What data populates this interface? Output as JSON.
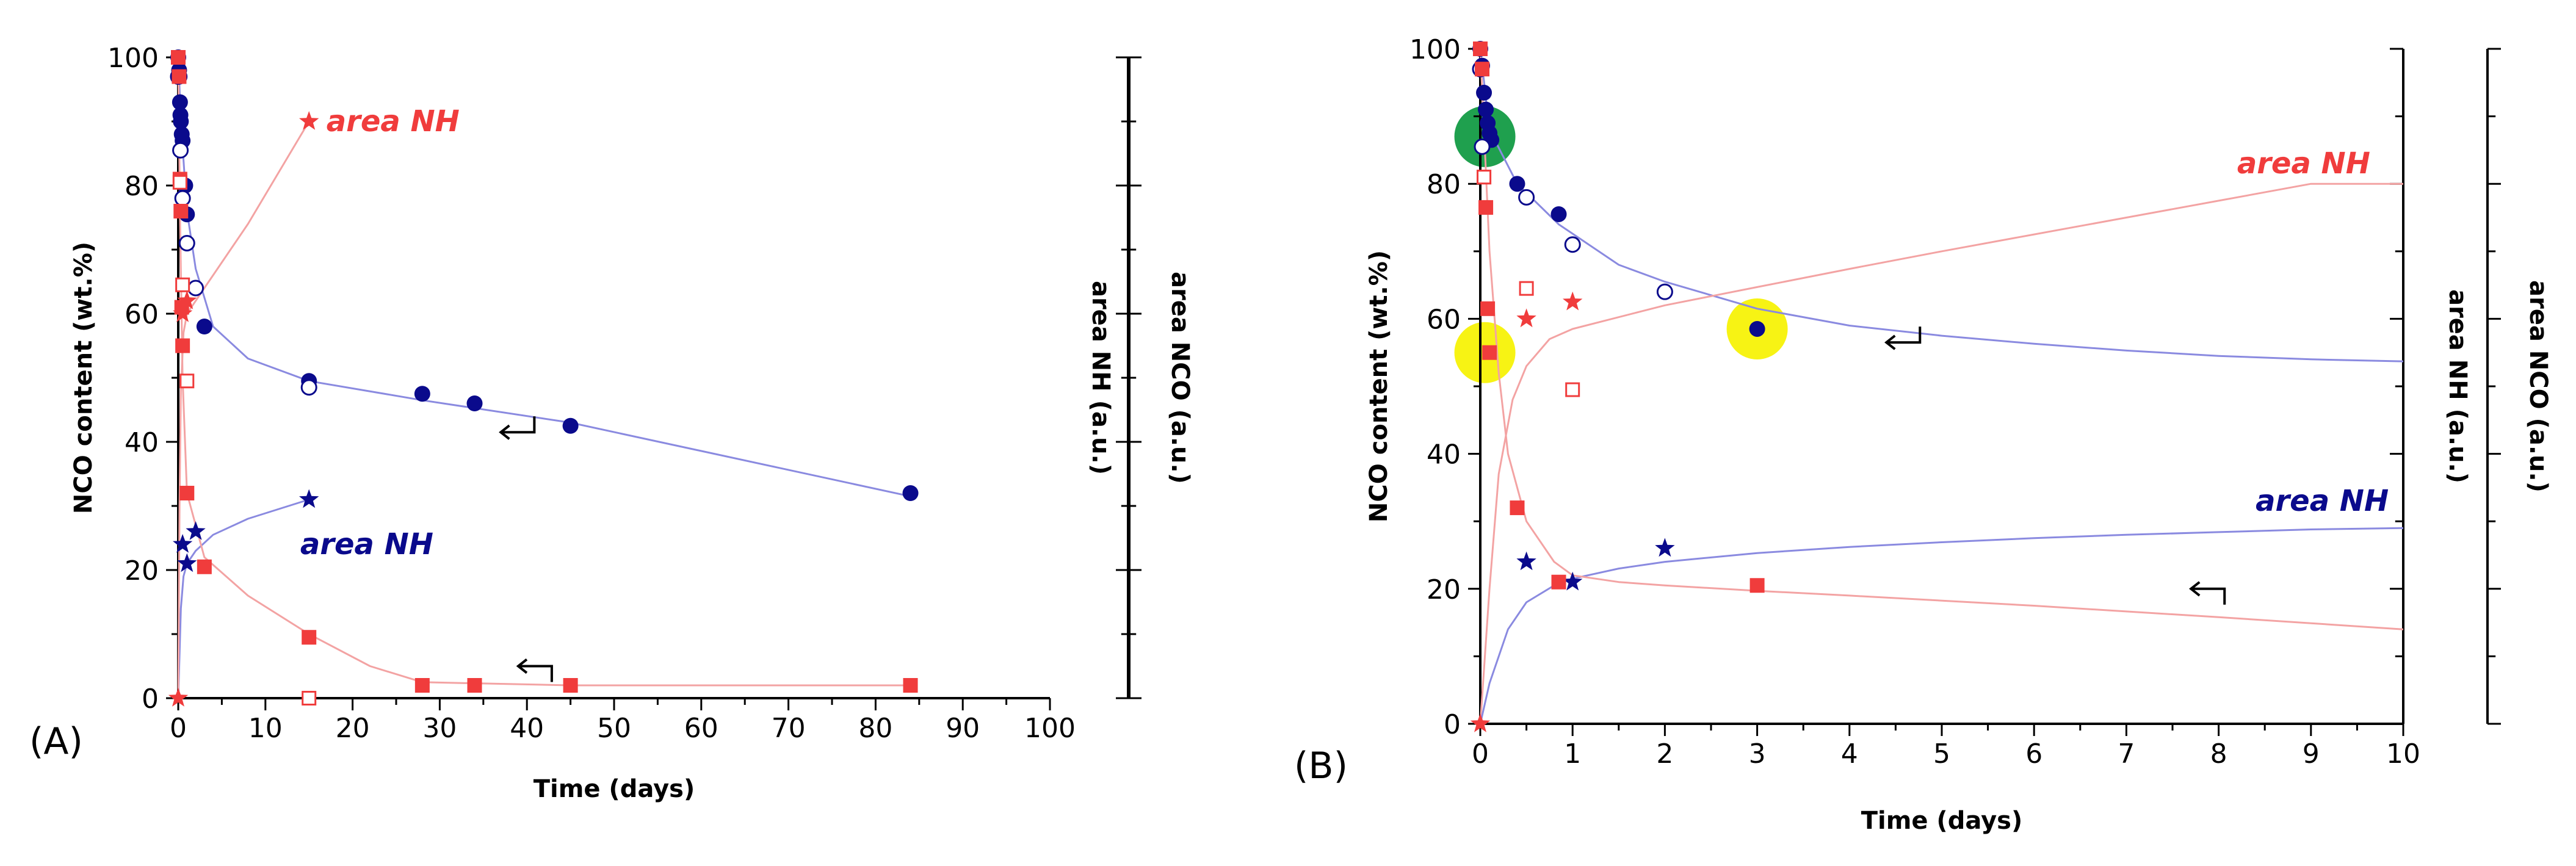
{
  "colors": {
    "blue": "#0a0a8c",
    "blue_fit": "#8a8ae0",
    "red": "#f03c3c",
    "red_fit": "#f3a3a3",
    "green_marker": "#1fa04e",
    "yellow_marker": "#f7f314"
  },
  "chart_data": [
    {
      "type": "scatter",
      "panel_label": "(A)",
      "xlabel": "Time (days)",
      "ylabel_left": "NCO content (wt.%)",
      "ylabel_right1": "area NH (a.u.)",
      "ylabel_right2": "area NCO (a.u.)",
      "xlim": [
        0,
        100
      ],
      "ylim": [
        0,
        100
      ],
      "xticks": [
        "0",
        "10",
        "20",
        "30",
        "40",
        "50",
        "60",
        "70",
        "80",
        "90",
        "100"
      ],
      "yticks": [
        "0",
        "20",
        "40",
        "60",
        "80",
        "100"
      ],
      "grid": false,
      "annotations": [
        {
          "text": "area NH",
          "color": "red",
          "x": 17,
          "y": 90
        },
        {
          "text": "area NH",
          "color": "blue",
          "x": 14,
          "y": 24
        }
      ],
      "series": [
        {
          "name": "NCO content (filled circles)",
          "marker": "circle-filled",
          "color": "blue",
          "x": [
            0,
            0.1,
            0.15,
            0.2,
            0.25,
            0.3,
            0.4,
            0.5,
            0.8,
            1,
            3,
            15,
            28,
            34,
            45,
            84
          ],
          "y": [
            100,
            98,
            97,
            93,
            91,
            90,
            88,
            87,
            80,
            75.5,
            58,
            49.5,
            47.5,
            46,
            42.5,
            32
          ]
        },
        {
          "name": "NCO content (open circles)",
          "marker": "circle-open",
          "color": "blue",
          "x": [
            0,
            0.25,
            0.5,
            1,
            2,
            15
          ],
          "y": [
            97,
            85.5,
            78,
            71,
            64,
            48.5
          ]
        },
        {
          "name": "NCO content fit",
          "marker": "line",
          "color": "blue_fit",
          "x": [
            0,
            0.3,
            1,
            2,
            4,
            8,
            15,
            28,
            45,
            84
          ],
          "y": [
            100,
            90,
            76,
            67,
            58,
            53,
            49.5,
            46.5,
            43,
            31.5
          ]
        },
        {
          "name": "area NH (red stars)",
          "marker": "star",
          "color": "red",
          "x": [
            0,
            0.5,
            1,
            15
          ],
          "y": [
            0,
            60,
            62,
            90
          ]
        },
        {
          "name": "area NH (blue stars)",
          "marker": "star",
          "color": "blue",
          "x": [
            0.5,
            1,
            2,
            15
          ],
          "y": [
            24,
            21,
            26,
            31
          ]
        },
        {
          "name": "area NH fit (blue)",
          "marker": "line",
          "color": "blue_fit",
          "x": [
            0,
            0.3,
            0.6,
            1,
            2,
            4,
            8,
            15
          ],
          "y": [
            0,
            14,
            19,
            21,
            23,
            25.5,
            28,
            31
          ]
        },
        {
          "name": "area NH fit (red)",
          "marker": "line",
          "color": "red_fit",
          "x": [
            0,
            0.15,
            0.3,
            0.6,
            1,
            3,
            8,
            15
          ],
          "y": [
            0,
            30,
            48,
            57,
            60,
            64,
            74,
            90
          ]
        },
        {
          "name": "area NCO (filled squares)",
          "marker": "square-filled",
          "color": "red",
          "x": [
            0,
            0.1,
            0.2,
            0.3,
            0.4,
            0.5,
            1,
            3,
            15,
            28,
            34,
            45,
            84
          ],
          "y": [
            100,
            97,
            81,
            76,
            61,
            55,
            32,
            20.5,
            9.5,
            2,
            2,
            2,
            2
          ]
        },
        {
          "name": "area NCO (open squares)",
          "marker": "square-open",
          "color": "red",
          "x": [
            0.2,
            0.5,
            1,
            15
          ],
          "y": [
            80.5,
            64.5,
            49.5,
            0
          ]
        },
        {
          "name": "area NCO fit",
          "marker": "line",
          "color": "red_fit",
          "x": [
            0,
            0.2,
            0.5,
            1,
            3,
            8,
            15,
            22,
            28,
            45,
            84
          ],
          "y": [
            100,
            75,
            50,
            32,
            22,
            16,
            10,
            5,
            2.5,
            2,
            2
          ]
        }
      ],
      "arrows": [
        {
          "direction": "left-axis",
          "x": 37,
          "y": 41.5
        },
        {
          "direction": "right-axis",
          "x": 39,
          "y": 5
        }
      ]
    },
    {
      "type": "scatter",
      "panel_label": "(B)",
      "xlabel": "Time (days)",
      "ylabel_left": "NCO content (wt.%)",
      "ylabel_right1": "area NH (a.u.)",
      "ylabel_right2": "area NCO (a.u.)",
      "xlim": [
        0,
        10
      ],
      "ylim": [
        0,
        100
      ],
      "xticks": [
        "0",
        "1",
        "2",
        "3",
        "4",
        "5",
        "6",
        "7",
        "8",
        "9",
        "10"
      ],
      "yticks": [
        "0",
        "20",
        "40",
        "60",
        "80",
        "100"
      ],
      "grid": false,
      "annotations": [
        {
          "text": "area NH",
          "color": "red",
          "x": 8.2,
          "y": 83
        },
        {
          "text": "area NH",
          "color": "blue",
          "x": 8.4,
          "y": 33
        }
      ],
      "highlights": [
        {
          "color": "green_marker",
          "x": 0.05,
          "y": 87
        },
        {
          "color": "yellow_marker",
          "x": 0.05,
          "y": 55
        },
        {
          "color": "yellow_marker",
          "x": 3,
          "y": 58.5
        }
      ],
      "series": [
        {
          "name": "NCO content (filled circles)",
          "marker": "circle-filled",
          "color": "blue",
          "x": [
            0,
            0.02,
            0.04,
            0.06,
            0.08,
            0.1,
            0.12,
            0.4,
            0.85,
            3
          ],
          "y": [
            100,
            97.5,
            93.5,
            91,
            89,
            87.5,
            86.5,
            80,
            75.5,
            58.5
          ]
        },
        {
          "name": "NCO content (open circles)",
          "marker": "circle-open",
          "color": "blue",
          "x": [
            0,
            0.02,
            0.5,
            1,
            2
          ],
          "y": [
            97,
            85.5,
            78,
            71,
            64
          ]
        },
        {
          "name": "NCO content fit",
          "marker": "line",
          "color": "blue_fit",
          "x": [
            0,
            0.1,
            0.4,
            0.85,
            1.5,
            2,
            3,
            4,
            5,
            6,
            7,
            8,
            9,
            10
          ],
          "y": [
            100,
            88,
            80,
            74,
            68,
            65.5,
            61.5,
            59,
            57.5,
            56.3,
            55.3,
            54.5,
            54,
            53.7
          ]
        },
        {
          "name": "area NH (red stars)",
          "marker": "star",
          "color": "red",
          "x": [
            0,
            0.5,
            1
          ],
          "y": [
            0,
            60,
            62.5
          ]
        },
        {
          "name": "area NH (blue stars)",
          "marker": "star",
          "color": "blue",
          "x": [
            0.5,
            1,
            2
          ],
          "y": [
            24,
            21,
            26
          ]
        },
        {
          "name": "area NH fit (red)",
          "marker": "line",
          "color": "red_fit",
          "x": [
            0,
            0.1,
            0.2,
            0.35,
            0.5,
            0.75,
            1,
            2,
            3,
            4,
            5,
            6,
            7,
            8,
            9,
            10
          ],
          "y": [
            0,
            20,
            37,
            48,
            53,
            57,
            58.5,
            62,
            64.7,
            67.4,
            70,
            72.5,
            75,
            77.5,
            80,
            80
          ]
        },
        {
          "name": "area NH fit (blue)",
          "marker": "line",
          "color": "blue_fit",
          "x": [
            0,
            0.1,
            0.3,
            0.5,
            0.8,
            1,
            1.5,
            2,
            3,
            4,
            5,
            6,
            7,
            8,
            9,
            10
          ],
          "y": [
            0,
            6,
            14,
            18,
            20.5,
            21.5,
            23,
            24,
            25.3,
            26.2,
            26.9,
            27.5,
            28,
            28.4,
            28.8,
            29
          ]
        },
        {
          "name": "area NCO (filled squares)",
          "marker": "square-filled",
          "color": "red",
          "x": [
            0,
            0.02,
            0.04,
            0.06,
            0.08,
            0.1,
            0.4,
            0.85,
            3
          ],
          "y": [
            100,
            97,
            81,
            76.5,
            61.5,
            55,
            32,
            21,
            20.5
          ]
        },
        {
          "name": "area NCO (open squares)",
          "marker": "square-open",
          "color": "red",
          "x": [
            0.04,
            0.5,
            1
          ],
          "y": [
            81,
            64.5,
            49.5
          ]
        },
        {
          "name": "area NCO fit",
          "marker": "line",
          "color": "red_fit",
          "x": [
            0,
            0.05,
            0.1,
            0.2,
            0.3,
            0.5,
            0.8,
            1,
            1.5,
            2,
            3,
            4,
            6,
            8,
            10
          ],
          "y": [
            100,
            85,
            70,
            52,
            40,
            30,
            24,
            22,
            21,
            20.5,
            19.7,
            19,
            17.5,
            15.8,
            14
          ]
        }
      ],
      "arrows": [
        {
          "direction": "left-axis",
          "x": 4.4,
          "y": 56.5
        },
        {
          "direction": "right-axis",
          "x": 7.7,
          "y": 20
        }
      ]
    }
  ]
}
